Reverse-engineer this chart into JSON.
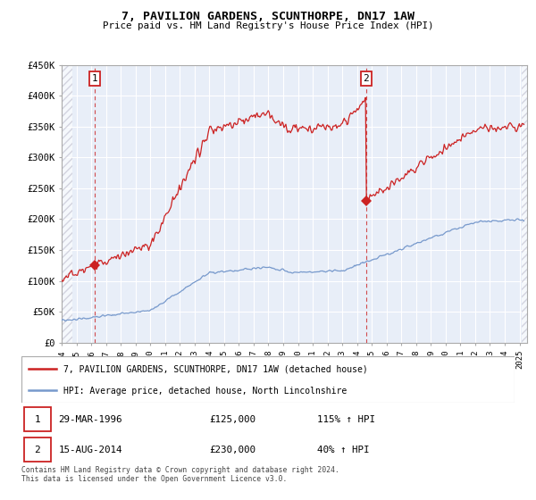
{
  "title": "7, PAVILION GARDENS, SCUNTHORPE, DN17 1AW",
  "subtitle": "Price paid vs. HM Land Registry's House Price Index (HPI)",
  "ylim": [
    0,
    450000
  ],
  "xlim_start": 1994.0,
  "xlim_end": 2025.5,
  "sale1": {
    "date_num": 1996.24,
    "price": 125000,
    "label": "1",
    "date_str": "29-MAR-1996",
    "hpi_pct": "115%"
  },
  "sale2": {
    "date_num": 2014.62,
    "price": 230000,
    "label": "2",
    "date_str": "15-AUG-2014",
    "hpi_pct": "40%"
  },
  "legend_line1": "7, PAVILION GARDENS, SCUNTHORPE, DN17 1AW (detached house)",
  "legend_line2": "HPI: Average price, detached house, North Lincolnshire",
  "footer": "Contains HM Land Registry data © Crown copyright and database right 2024.\nThis data is licensed under the Open Government Licence v3.0.",
  "red_color": "#cc2222",
  "blue_color": "#7799cc",
  "bg_color": "#e8eef8",
  "hatch_color": "#bbbbcc"
}
